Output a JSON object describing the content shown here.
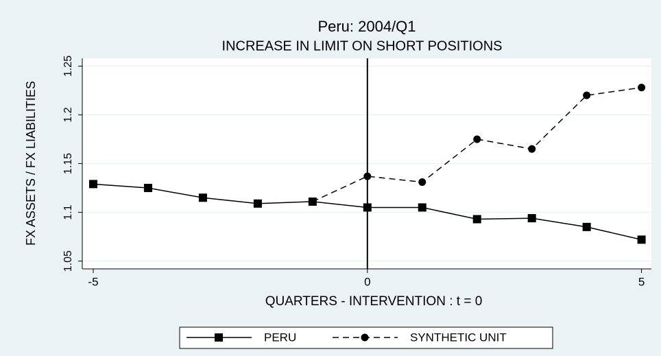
{
  "chart_data": {
    "type": "line",
    "title": "Peru: 2004/Q1",
    "subtitle": "INCREASE IN LIMIT ON SHORT POSITIONS",
    "x_label": "QUARTERS - INTERVENTION : t = 0",
    "y_label": "FX ASSETS / FX LIABILITIES",
    "x": [
      -5,
      -4,
      -3,
      -2,
      -1,
      0,
      1,
      2,
      3,
      4,
      5
    ],
    "series": [
      {
        "name": "PERU",
        "color": "#000000",
        "dash": "solid",
        "marker": "square",
        "values": [
          1.129,
          1.125,
          1.115,
          1.109,
          1.111,
          1.105,
          1.105,
          1.093,
          1.094,
          1.085,
          1.072
        ]
      },
      {
        "name": "SYNTHETIC UNIT",
        "color": "#000000",
        "dash": "dashed",
        "marker": "circle",
        "values": [
          null,
          null,
          null,
          null,
          1.111,
          1.137,
          1.131,
          1.175,
          1.165,
          1.22,
          1.228
        ]
      }
    ],
    "xline": 0,
    "xlim": [
      -5.2,
      5.18
    ],
    "xticks": [
      -5,
      0,
      5
    ],
    "ylim": [
      1.042,
      1.258
    ],
    "yticks": [
      1.05,
      1.1,
      1.15,
      1.2,
      1.25
    ],
    "grid": true,
    "legend": "bottom"
  }
}
